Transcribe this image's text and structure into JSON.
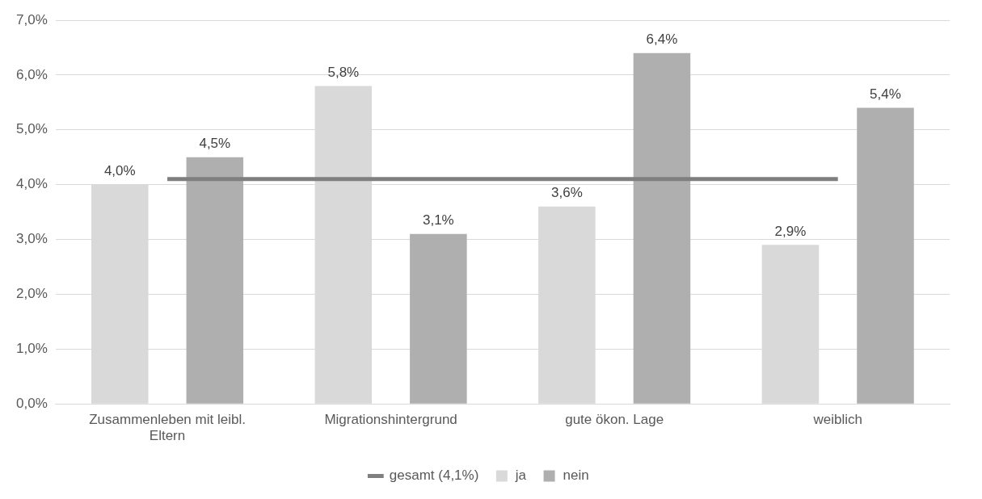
{
  "chart_data": {
    "type": "bar",
    "categories": [
      "Zusammenleben mit leibl. Eltern",
      "Migrationshintergrund",
      "gute ökon. Lage",
      "weiblich"
    ],
    "series": [
      {
        "name": "ja",
        "color": "#d9d9d9",
        "values": [
          4.0,
          5.8,
          3.6,
          2.9
        ],
        "value_labels": [
          "4,0%",
          "5,8%",
          "3,6%",
          "2,9%"
        ]
      },
      {
        "name": "nein",
        "color": "#afafaf",
        "values": [
          4.5,
          3.1,
          6.4,
          5.4
        ],
        "value_labels": [
          "4,5%",
          "3,1%",
          "6,4%",
          "5,4%"
        ]
      },
      {
        "name": "gesamt (4,1%)",
        "type": "line",
        "color": "#7f7f7f",
        "values": [
          4.1,
          4.1,
          4.1,
          4.1
        ],
        "marker": "none"
      }
    ],
    "ylim": [
      0,
      7
    ],
    "yticks": [
      {
        "value": 0,
        "label": "0,0%"
      },
      {
        "value": 1,
        "label": "1,0%"
      },
      {
        "value": 2,
        "label": "2,0%"
      },
      {
        "value": 3,
        "label": "3,0%"
      },
      {
        "value": 4,
        "label": "4,0%"
      },
      {
        "value": 5,
        "label": "5,0%"
      },
      {
        "value": 6,
        "label": "6,0%"
      },
      {
        "value": 7,
        "label": "7,0%"
      }
    ],
    "grid": "y",
    "legend": "bottom"
  }
}
